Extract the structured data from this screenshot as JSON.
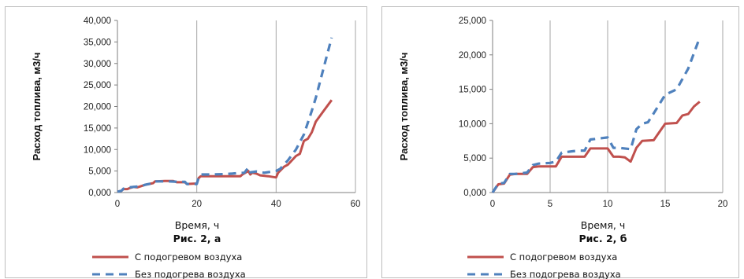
{
  "colors": {
    "heated": "#c0504d",
    "unheated": "#4f81bd",
    "grid": "#a6a6a6",
    "axis": "#7f7f7f"
  },
  "chart_data": [
    {
      "type": "line",
      "caption": "Рис. 2, а",
      "xlabel": "Время, ч",
      "ylabel": "Расход топлива, м3/ч",
      "xlim": [
        0,
        60
      ],
      "ylim": [
        0,
        40000
      ],
      "xticks": [
        "0",
        "20",
        "40",
        "60"
      ],
      "yticks": [
        "0,000",
        "5,000",
        "10,000",
        "15,000",
        "20,000",
        "25,000",
        "30,000",
        "35,000",
        "40,000"
      ],
      "grid": "vertical",
      "legend": "bottom",
      "series": [
        {
          "name": "С подогревом воздуха",
          "style": "solid",
          "x": [
            0,
            1,
            1.5,
            2.5,
            3,
            4,
            5,
            6,
            7,
            8,
            9,
            9.5,
            12,
            14,
            15,
            17,
            17.5,
            20,
            20.5,
            21,
            24,
            26,
            27,
            29,
            31,
            31.5,
            33,
            33.5,
            34,
            35,
            36,
            38,
            40,
            40.5,
            42,
            43,
            44,
            45,
            46,
            47,
            48,
            49,
            50,
            52,
            54
          ],
          "y": [
            200,
            400,
            800,
            800,
            1000,
            1300,
            1200,
            1500,
            1800,
            2000,
            2200,
            2600,
            2700,
            2700,
            2400,
            2400,
            2000,
            2100,
            3400,
            3800,
            3800,
            3800,
            3800,
            3800,
            3800,
            4200,
            5000,
            4200,
            4600,
            4400,
            4000,
            3800,
            3500,
            4600,
            6000,
            6500,
            7500,
            8500,
            9000,
            12000,
            12500,
            14000,
            16500,
            19000,
            21500
          ]
        },
        {
          "name": "Без подогрева воздуха",
          "style": "dashed",
          "x": [
            0,
            1,
            1.5,
            3,
            4,
            6,
            7,
            9,
            9.5,
            13,
            15,
            17,
            17.5,
            20,
            20.5,
            21,
            24,
            27,
            29,
            30,
            32,
            33,
            33.5,
            35,
            37,
            40,
            41,
            43,
            45,
            47,
            49,
            50,
            52,
            54
          ],
          "y": [
            200,
            400,
            900,
            1200,
            1300,
            1500,
            1800,
            2200,
            2600,
            2600,
            2500,
            2500,
            2000,
            2000,
            3600,
            4200,
            4200,
            4300,
            4400,
            4500,
            4600,
            5800,
            4700,
            4900,
            4600,
            5000,
            5500,
            7500,
            10000,
            13500,
            19000,
            22000,
            29000,
            36000
          ]
        }
      ]
    },
    {
      "type": "line",
      "caption": "Рис. 2, б",
      "xlabel": "Время, ч",
      "ylabel": "Расход топлива, м3/ч",
      "xlim": [
        0,
        20
      ],
      "ylim": [
        0,
        25000
      ],
      "xticks": [
        "0",
        "5",
        "10",
        "15",
        "20"
      ],
      "yticks": [
        "0,000",
        "5,000",
        "10,000",
        "15,000",
        "20,000",
        "25,000"
      ],
      "grid": "vertical",
      "legend": "bottom",
      "series": [
        {
          "name": "С подогревом воздуха",
          "style": "solid",
          "x": [
            0,
            0.5,
            1,
            1.5,
            2,
            3,
            3.5,
            4,
            5,
            5.5,
            6,
            7,
            8,
            8.5,
            10,
            10.5,
            11,
            11.5,
            12,
            12.5,
            13,
            14,
            15,
            16,
            16.5,
            17,
            17.5,
            18
          ],
          "y": [
            0,
            1200,
            1300,
            2600,
            2700,
            2700,
            3700,
            3800,
            3800,
            3800,
            5200,
            5200,
            5200,
            6400,
            6400,
            5200,
            5200,
            5100,
            4500,
            6500,
            7500,
            7600,
            10000,
            10100,
            11200,
            11400,
            12500,
            13200
          ]
        },
        {
          "name": "Без подогрева воздуха",
          "style": "dashed",
          "x": [
            0,
            0.5,
            1,
            1.5,
            2,
            3,
            3.5,
            4,
            5,
            5.5,
            6,
            7,
            7.5,
            8,
            8.5,
            10,
            10.5,
            11,
            12,
            12.5,
            13,
            13.5,
            14,
            15,
            16,
            16.5,
            17,
            18
          ],
          "y": [
            0,
            1300,
            1400,
            2700,
            2700,
            2900,
            4000,
            4200,
            4300,
            4500,
            5800,
            6000,
            6100,
            6100,
            7700,
            8000,
            6500,
            6500,
            6300,
            9200,
            10000,
            10200,
            11500,
            14200,
            15000,
            16500,
            18000,
            22500
          ]
        }
      ]
    }
  ]
}
